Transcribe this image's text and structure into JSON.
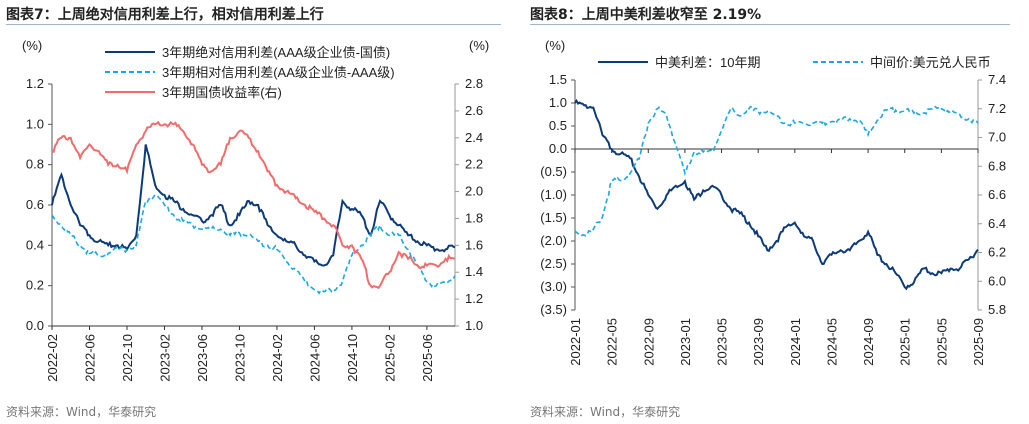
{
  "chart_data": [
    {
      "type": "line",
      "title": "图表7：上周绝对信用利差上行，相对信用利差上行",
      "yunit_left": "(%)",
      "yunit_right": "(%)",
      "ylim_left": [
        0,
        1.2
      ],
      "ylim_right": [
        1.0,
        2.8
      ],
      "yticks_left": [
        "0.0",
        "0.2",
        "0.4",
        "0.6",
        "0.8",
        "1.0",
        "1.2"
      ],
      "yticks_right": [
        "1.0",
        "1.2",
        "1.4",
        "1.6",
        "1.8",
        "2.0",
        "2.2",
        "2.4",
        "2.6",
        "2.8"
      ],
      "x_start": "2022-02",
      "xticks": [
        "2022-02",
        "2022-06",
        "2022-10",
        "2023-02",
        "2023-06",
        "2023-10",
        "2024-02",
        "2024-06",
        "2024-10",
        "2025-02",
        "2025-06"
      ],
      "legend_placement": "top-center",
      "grid": false,
      "series": [
        {
          "name": "3年期绝对信用利差(AAA级企业债-国债)",
          "axis": "left",
          "color": "#0d3b7a",
          "style": "solid",
          "values": [
            0.6,
            0.75,
            0.6,
            0.5,
            0.45,
            0.42,
            0.4,
            0.4,
            0.38,
            0.45,
            0.9,
            0.7,
            0.65,
            0.62,
            0.58,
            0.55,
            0.52,
            0.55,
            0.6,
            0.5,
            0.55,
            0.62,
            0.6,
            0.5,
            0.45,
            0.42,
            0.4,
            0.35,
            0.32,
            0.3,
            0.35,
            0.62,
            0.58,
            0.55,
            0.45,
            0.62,
            0.55,
            0.5,
            0.45,
            0.42,
            0.4,
            0.38,
            0.38,
            0.39
          ]
        },
        {
          "name": "3年期相对信用利差(AA级企业债-AAA级)",
          "axis": "left",
          "color": "#1aa7e6",
          "style": "dashed",
          "values": [
            0.55,
            0.5,
            0.45,
            0.4,
            0.36,
            0.35,
            0.36,
            0.38,
            0.38,
            0.4,
            0.62,
            0.65,
            0.6,
            0.55,
            0.52,
            0.5,
            0.48,
            0.48,
            0.48,
            0.45,
            0.46,
            0.45,
            0.42,
            0.4,
            0.38,
            0.32,
            0.28,
            0.22,
            0.18,
            0.17,
            0.18,
            0.22,
            0.35,
            0.4,
            0.45,
            0.5,
            0.45,
            0.45,
            0.38,
            0.3,
            0.22,
            0.2,
            0.22,
            0.25
          ]
        },
        {
          "name": "3年期国债收益率(右)",
          "axis": "right",
          "color": "#f46b6b",
          "style": "solid",
          "values": [
            2.3,
            2.4,
            2.4,
            2.25,
            2.35,
            2.3,
            2.2,
            2.2,
            2.15,
            2.35,
            2.45,
            2.5,
            2.5,
            2.5,
            2.45,
            2.35,
            2.2,
            2.15,
            2.2,
            2.4,
            2.45,
            2.4,
            2.3,
            2.15,
            2.05,
            2.0,
            1.95,
            1.9,
            1.85,
            1.8,
            1.75,
            1.6,
            1.6,
            1.5,
            1.3,
            1.3,
            1.4,
            1.55,
            1.5,
            1.45,
            1.45,
            1.45,
            1.5,
            1.5
          ]
        }
      ],
      "source": "资料来源：Wind，华泰研究"
    },
    {
      "type": "line",
      "title": "图表8：上周中美利差收窄至 2.19%",
      "yunit_left": "(%)",
      "ylim_left": [
        -3.5,
        1.5
      ],
      "ylim_right": [
        5.8,
        7.4
      ],
      "yticks_left": [
        "(3.5)",
        "(3.0)",
        "(2.5)",
        "(2.0)",
        "(1.5)",
        "(1.0)",
        "(0.5)",
        "0.0",
        "0.5",
        "1.0",
        "1.5"
      ],
      "yticks_right": [
        "5.8",
        "6.0",
        "6.2",
        "6.4",
        "6.6",
        "6.8",
        "7.0",
        "7.2",
        "7.4"
      ],
      "x_start": "2022-01",
      "xticks": [
        "2022-01",
        "2022-05",
        "2022-09",
        "2023-01",
        "2023-05",
        "2023-09",
        "2024-01",
        "2024-05",
        "2024-09",
        "2025-01",
        "2025-05",
        "2025-09"
      ],
      "legend_placement": "top",
      "grid": false,
      "series": [
        {
          "name": "中美利差：10年期",
          "axis": "left",
          "color": "#0d3b7a",
          "style": "solid",
          "values": [
            1.0,
            0.95,
            0.9,
            0.3,
            0.0,
            -0.1,
            -0.2,
            -0.6,
            -1.0,
            -1.3,
            -1.0,
            -0.8,
            -0.7,
            -1.1,
            -0.9,
            -0.8,
            -1.0,
            -1.3,
            -1.4,
            -1.6,
            -1.9,
            -2.2,
            -2.0,
            -1.7,
            -1.6,
            -1.9,
            -2.0,
            -2.5,
            -2.3,
            -2.2,
            -2.2,
            -2.0,
            -1.8,
            -2.3,
            -2.5,
            -2.7,
            -3.0,
            -2.9,
            -2.6,
            -2.7,
            -2.7,
            -2.6,
            -2.6,
            -2.4,
            -2.19
          ]
        },
        {
          "name": "中间价:美元兑人民币",
          "axis": "right",
          "color": "#1aa7e6",
          "style": "dashed",
          "values": [
            6.35,
            6.32,
            6.36,
            6.45,
            6.7,
            6.7,
            6.75,
            6.85,
            7.1,
            7.2,
            7.15,
            6.95,
            6.75,
            6.9,
            6.9,
            6.9,
            7.05,
            7.2,
            7.15,
            7.2,
            7.18,
            7.18,
            7.15,
            7.1,
            7.1,
            7.1,
            7.1,
            7.1,
            7.11,
            7.12,
            7.13,
            7.12,
            7.02,
            7.12,
            7.19,
            7.19,
            7.19,
            7.17,
            7.17,
            7.2,
            7.2,
            7.18,
            7.16,
            7.13,
            7.1
          ]
        }
      ],
      "source": "资料来源：Wind，华泰研究"
    }
  ]
}
